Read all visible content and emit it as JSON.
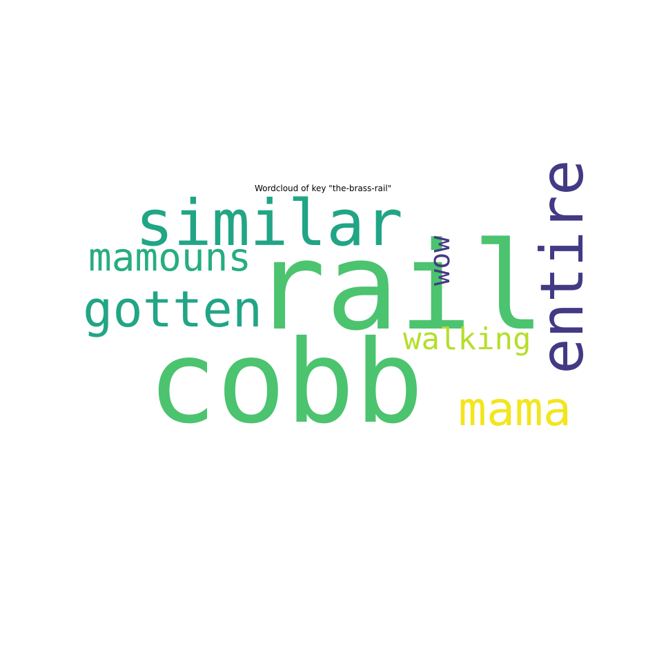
{
  "chart_data": {
    "type": "wordcloud",
    "title": "Wordcloud of key \"the-brass-rail\"",
    "words": [
      {
        "text": "rail",
        "weight": 1.0,
        "color": "#4cc36f",
        "orientation": "horizontal"
      },
      {
        "text": "cobb",
        "weight": 0.95,
        "color": "#4cc36f",
        "orientation": "horizontal"
      },
      {
        "text": "similar",
        "weight": 0.6,
        "color": "#21a585",
        "orientation": "horizontal"
      },
      {
        "text": "entire",
        "weight": 0.55,
        "color": "#423a84",
        "orientation": "vertical"
      },
      {
        "text": "gotten",
        "weight": 0.45,
        "color": "#21a585",
        "orientation": "horizontal"
      },
      {
        "text": "mama",
        "weight": 0.4,
        "color": "#f3e51e",
        "orientation": "horizontal"
      },
      {
        "text": "mamouns",
        "weight": 0.35,
        "color": "#27ad80",
        "orientation": "horizontal"
      },
      {
        "text": "walking",
        "weight": 0.28,
        "color": "#b5de2b",
        "orientation": "horizontal"
      },
      {
        "text": "wow",
        "weight": 0.24,
        "color": "#463883",
        "orientation": "vertical"
      }
    ]
  }
}
